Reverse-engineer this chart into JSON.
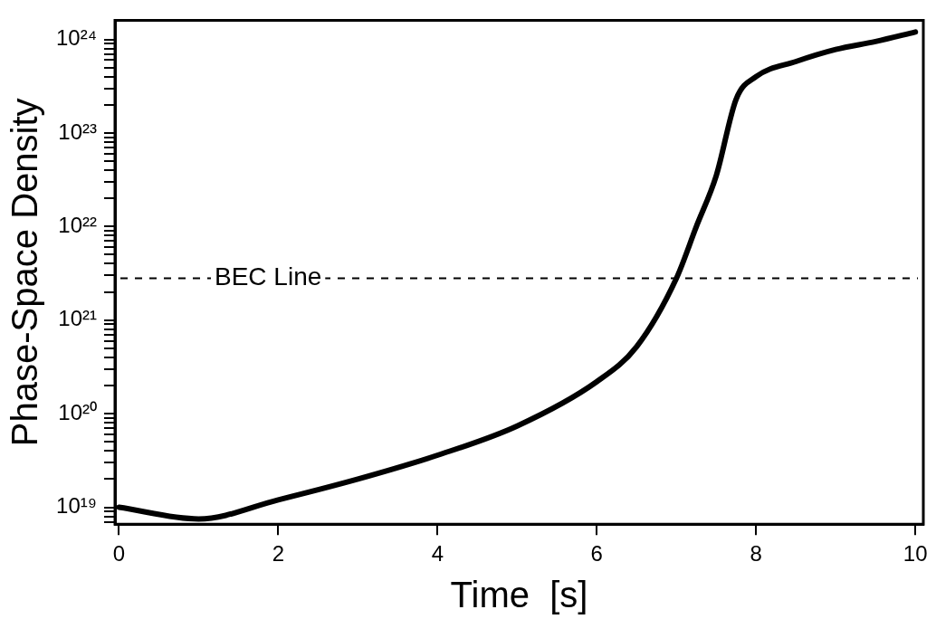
{
  "chart_data": {
    "type": "line",
    "xlabel": "Time  [s]",
    "ylabel": "Phase-Space Density",
    "log": "y",
    "grid": false,
    "legend": false,
    "marker": "none",
    "line_style": "solid",
    "x": [
      0,
      1,
      2,
      3,
      4,
      5,
      6,
      6.5,
      7,
      7.25,
      7.5,
      7.75,
      8,
      8.5,
      9,
      9.5,
      10
    ],
    "series": [
      {
        "color": "#000000",
        "values": [
          1e+19,
          7.5e+18,
          1.2e+19,
          2e+19,
          3.6e+19,
          7.4e+19,
          2.2e+20,
          5.2e+20,
          2.8e+21,
          1e+22,
          3.5e+22,
          2.3e+23,
          4e+23,
          5.8e+23,
          7.8e+23,
          9.5e+23,
          1.2e+24
        ]
      }
    ],
    "xlim": [
      -0.05,
      10.1
    ],
    "xticks": [
      0,
      2,
      4,
      6,
      8,
      10
    ],
    "ylim": [
      6.6e+18,
      1.6e+24
    ],
    "yticks": [
      {
        "value": 7e+18,
        "label": null
      },
      {
        "value": 8e+18,
        "label": null
      },
      {
        "value": 9e+18,
        "label": null
      },
      {
        "value": 1e+19,
        "label": "10¹⁹"
      },
      {
        "value": 2e+19,
        "label": null
      },
      {
        "value": 3e+19,
        "label": null
      },
      {
        "value": 4e+19,
        "label": null
      },
      {
        "value": 5e+19,
        "label": null
      },
      {
        "value": 6e+19,
        "label": null
      },
      {
        "value": 7e+19,
        "label": null
      },
      {
        "value": 8e+19,
        "label": null
      },
      {
        "value": 9e+19,
        "label": null
      },
      {
        "value": 1e+20,
        "label": "10²⁰"
      },
      {
        "value": 2e+20,
        "label": null
      },
      {
        "value": 3e+20,
        "label": null
      },
      {
        "value": 4e+20,
        "label": null
      },
      {
        "value": 5e+20,
        "label": null
      },
      {
        "value": 6e+20,
        "label": null
      },
      {
        "value": 7e+20,
        "label": null
      },
      {
        "value": 8e+20,
        "label": null
      },
      {
        "value": 9e+20,
        "label": null
      },
      {
        "value": 1e+21,
        "label": "10²¹"
      },
      {
        "value": 2e+21,
        "label": null
      },
      {
        "value": 3e+21,
        "label": null
      },
      {
        "value": 4e+21,
        "label": null
      },
      {
        "value": 5e+21,
        "label": null
      },
      {
        "value": 6e+21,
        "label": null
      },
      {
        "value": 7e+21,
        "label": null
      },
      {
        "value": 8e+21,
        "label": null
      },
      {
        "value": 9e+21,
        "label": null
      },
      {
        "value": 1e+22,
        "label": "10²²"
      },
      {
        "value": 2e+22,
        "label": null
      },
      {
        "value": 3e+22,
        "label": null
      },
      {
        "value": 4e+22,
        "label": null
      },
      {
        "value": 5e+22,
        "label": null
      },
      {
        "value": 6e+22,
        "label": null
      },
      {
        "value": 7e+22,
        "label": null
      },
      {
        "value": 8e+22,
        "label": null
      },
      {
        "value": 9e+22,
        "label": null
      },
      {
        "value": 1e+23,
        "label": "10²³"
      },
      {
        "value": 2e+23,
        "label": null
      },
      {
        "value": 3e+23,
        "label": null
      },
      {
        "value": 4e+23,
        "label": null
      },
      {
        "value": 5e+23,
        "label": null
      },
      {
        "value": 6e+23,
        "label": null
      },
      {
        "value": 7e+23,
        "label": null
      },
      {
        "value": 8e+23,
        "label": null
      },
      {
        "value": 9e+23,
        "label": null
      },
      {
        "value": 1e+24,
        "label": "10²⁴"
      }
    ],
    "ref_lines": [
      {
        "axis": "y",
        "value": 2.8e+21,
        "label": "BEC Line",
        "line_style": "dashed"
      }
    ]
  }
}
